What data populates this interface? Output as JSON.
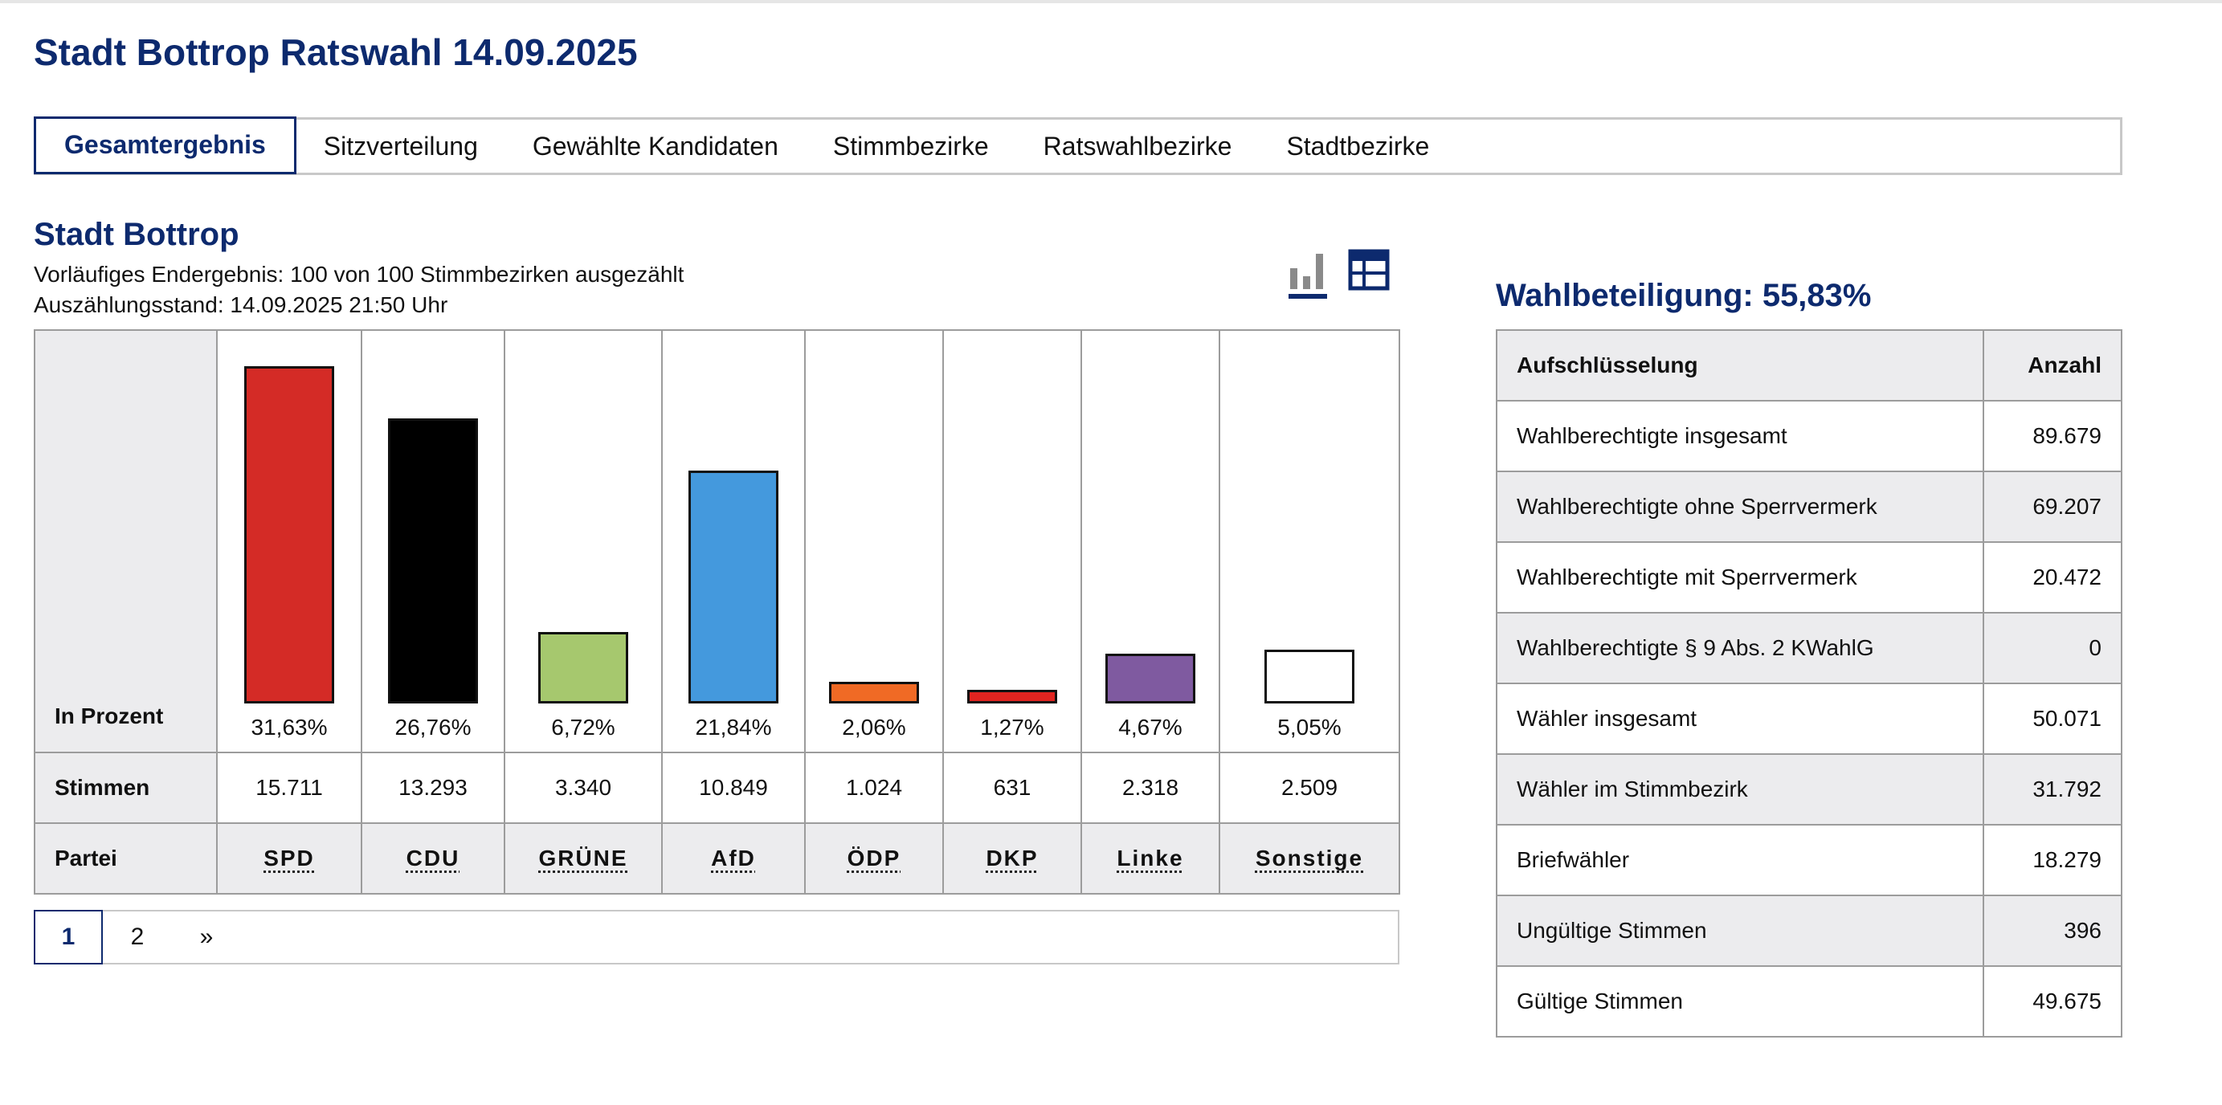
{
  "page": {
    "title": "Stadt Bottrop Ratswahl 14.09.2025"
  },
  "tabs": [
    {
      "label": "Gesamtergebnis",
      "active": true
    },
    {
      "label": "Sitzverteilung"
    },
    {
      "label": "Gewählte Kandidaten"
    },
    {
      "label": "Stimmbezirke"
    },
    {
      "label": "Ratswahlbezirke"
    },
    {
      "label": "Stadtbezirke"
    }
  ],
  "section": {
    "title": "Stadt Bottrop",
    "status": "Vorläufiges Endergebnis: 100 von 100 Stimmbezirken ausgezählt",
    "timestamp": "Auszählungsstand: 14.09.2025 21:50 Uhr"
  },
  "view_icons": {
    "chart": "bar-chart-icon",
    "table": "table-icon",
    "selected": "chart"
  },
  "results": {
    "row_labels": {
      "percent": "In Prozent",
      "votes": "Stimmen",
      "party": "Partei"
    }
  },
  "chart_data": {
    "type": "bar",
    "categories": [
      "SPD",
      "CDU",
      "GRÜNE",
      "AfD",
      "ÖDP",
      "DKP",
      "Linke",
      "Sonstige"
    ],
    "values": [
      31.63,
      26.76,
      6.72,
      21.84,
      2.06,
      1.27,
      4.67,
      5.05
    ],
    "value_labels": [
      "31,63%",
      "26,76%",
      "6,72%",
      "21,84%",
      "2,06%",
      "1,27%",
      "4,67%",
      "5,05%"
    ],
    "votes": [
      "15.711",
      "13.293",
      "3.340",
      "10.849",
      "1.024",
      "631",
      "2.318",
      "2.509"
    ],
    "colors": [
      "#d42b26",
      "#000000",
      "#a6c86e",
      "#4499dd",
      "#f06a25",
      "#e02420",
      "#7f5aa0",
      "#ffffff"
    ],
    "ylim": [
      0,
      31.63
    ]
  },
  "pagination": {
    "pages": [
      "1",
      "2"
    ],
    "current": "1",
    "next": "»"
  },
  "turnout": {
    "title": "Wahlbeteiligung: 55,83%",
    "headers": {
      "label": "Aufschlüsselung",
      "value": "Anzahl"
    },
    "rows": [
      {
        "label": "Wahlberechtigte insgesamt",
        "value": "89.679"
      },
      {
        "label": "Wahlberechtigte ohne Sperrvermerk",
        "value": "69.207"
      },
      {
        "label": "Wahlberechtigte mit Sperrvermerk",
        "value": "20.472"
      },
      {
        "label": "Wahlberechtigte § 9 Abs. 2 KWahlG",
        "value": "0"
      },
      {
        "label": "Wähler insgesamt",
        "value": "50.071"
      },
      {
        "label": "Wähler im Stimmbezirk",
        "value": "31.792"
      },
      {
        "label": "Briefwähler",
        "value": "18.279"
      },
      {
        "label": "Ungültige Stimmen",
        "value": "396"
      },
      {
        "label": "Gültige Stimmen",
        "value": "49.675"
      }
    ]
  }
}
